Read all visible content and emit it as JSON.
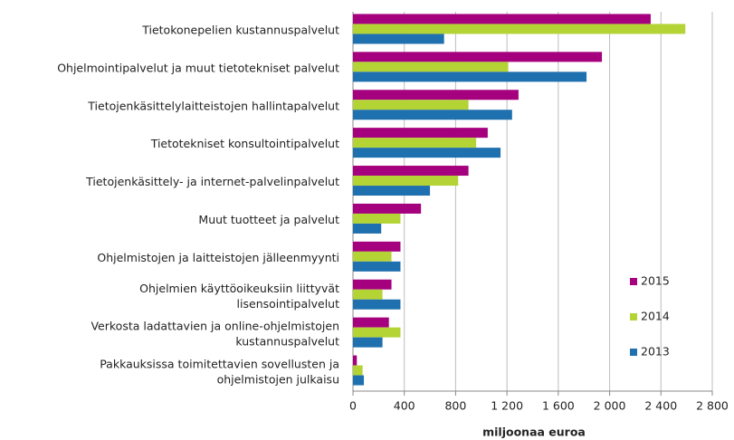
{
  "chart_data": {
    "type": "bar",
    "orientation": "horizontal",
    "categories": [
      "Tietokonepelien kustannuspalvelut",
      "Ohjelmointipalvelut ja muut tietotekniset palvelut",
      "Tietojenkäsittelylaitteistojen hallintapalvelut",
      "Tietotekniset konsultointipalvelut",
      "Tietojenkäsittely- ja internet-palvelinpalvelut",
      "Muut tuotteet ja palvelut",
      "Ohjelmistojen ja laitteistojen jälleenmyynti",
      "Ohjelmien käyttöoikeuksiin liittyvät\nlisensointipalvelut",
      "Verkosta ladattavien ja online-ohjelmistojen\nkustannuspalvelut",
      "Pakkauksissa toimitettavien sovellusten ja\nohjelmistojen julkaisu"
    ],
    "series": [
      {
        "name": "2015",
        "color": "#a5007d",
        "values": [
          2320,
          1940,
          1290,
          1050,
          900,
          530,
          370,
          300,
          280,
          30
        ]
      },
      {
        "name": "2014",
        "color": "#b4d335",
        "values": [
          2590,
          1210,
          900,
          960,
          820,
          370,
          300,
          230,
          370,
          75
        ]
      },
      {
        "name": "2013",
        "color": "#1f70ae",
        "values": [
          710,
          1820,
          1240,
          1150,
          600,
          220,
          370,
          370,
          230,
          85
        ]
      }
    ],
    "xlabel": "miljoonaa euroa",
    "xlim": [
      0,
      2800
    ],
    "xticks": [
      0,
      400,
      800,
      {
        "value": 1200,
        "label": "1 200"
      },
      {
        "value": 1600,
        "label": "1 600"
      },
      {
        "value": 2000,
        "label": "2 000"
      },
      {
        "value": 2400,
        "label": "2 400"
      },
      {
        "value": 2800,
        "label": "2 800"
      }
    ],
    "grid": true,
    "legend": "lower right"
  }
}
